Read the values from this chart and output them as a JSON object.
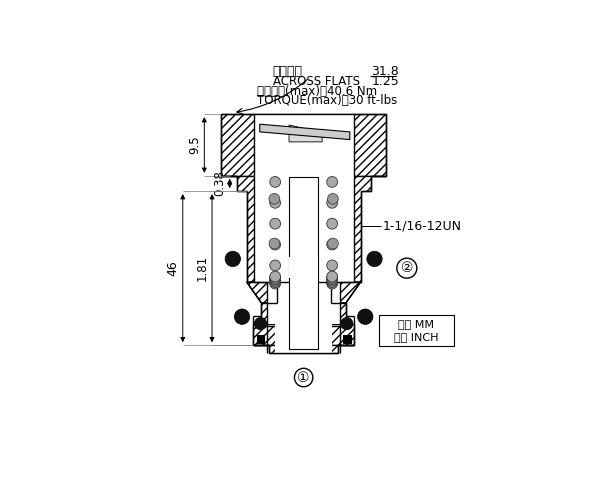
{
  "bg_color": "#ffffff",
  "line_color": "#000000",
  "annotation_across_flats_cn": "對邊寬度",
  "annotation_across_flats_en": "ACROSS FLATS",
  "annotation_value_top": "31.8",
  "annotation_value_bottom": "1.25",
  "annotation_torque_cn": "安裝扭矩(max)：40.6 Nm",
  "annotation_torque_en": "TORQUE(max)：30 ft-lbs",
  "dim_95": "9.5",
  "dim_038": "0.38",
  "dim_46": "46",
  "dim_181": "1.81",
  "thread_label": "1-1/16-12UN",
  "circle1_label": "①",
  "circle2_label": "②",
  "unit_box_line1": "毫米 MM",
  "unit_box_line2": "英寸 INCH",
  "hatch_density": "////",
  "lw_main": 1.0,
  "lw_dim": 0.7,
  "lw_thin": 0.6
}
